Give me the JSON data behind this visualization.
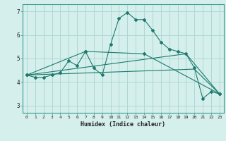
{
  "xlabel": "Humidex (Indice chaleur)",
  "bg_color": "#d4efec",
  "grid_color": "#afd8d3",
  "line_color": "#1e7a6d",
  "xlim": [
    -0.5,
    23.5
  ],
  "ylim": [
    2.7,
    7.3
  ],
  "xticks": [
    0,
    1,
    2,
    3,
    4,
    5,
    6,
    7,
    8,
    9,
    10,
    11,
    12,
    13,
    14,
    15,
    16,
    17,
    18,
    19,
    20,
    21,
    22,
    23
  ],
  "yticks": [
    3,
    4,
    5,
    6,
    7
  ],
  "lines": [
    {
      "x": [
        0,
        1,
        2,
        3,
        4,
        5,
        6,
        7,
        8,
        9,
        10,
        11,
        12,
        13,
        14,
        15,
        16,
        17,
        18,
        19,
        20,
        21,
        22,
        23
      ],
      "y": [
        4.3,
        4.2,
        4.2,
        4.3,
        4.4,
        4.9,
        4.7,
        5.3,
        4.6,
        4.3,
        5.6,
        6.7,
        6.95,
        6.65,
        6.65,
        6.2,
        5.7,
        5.4,
        5.3,
        5.2,
        4.6,
        3.3,
        3.6,
        3.5
      ],
      "has_markers": true
    },
    {
      "x": [
        0,
        7,
        14,
        23
      ],
      "y": [
        4.3,
        5.3,
        5.2,
        3.5
      ],
      "has_markers": true
    },
    {
      "x": [
        0,
        19,
        23
      ],
      "y": [
        4.3,
        5.2,
        3.5
      ],
      "has_markers": false
    },
    {
      "x": [
        0,
        20,
        23
      ],
      "y": [
        4.3,
        4.55,
        3.5
      ],
      "has_markers": false
    }
  ]
}
